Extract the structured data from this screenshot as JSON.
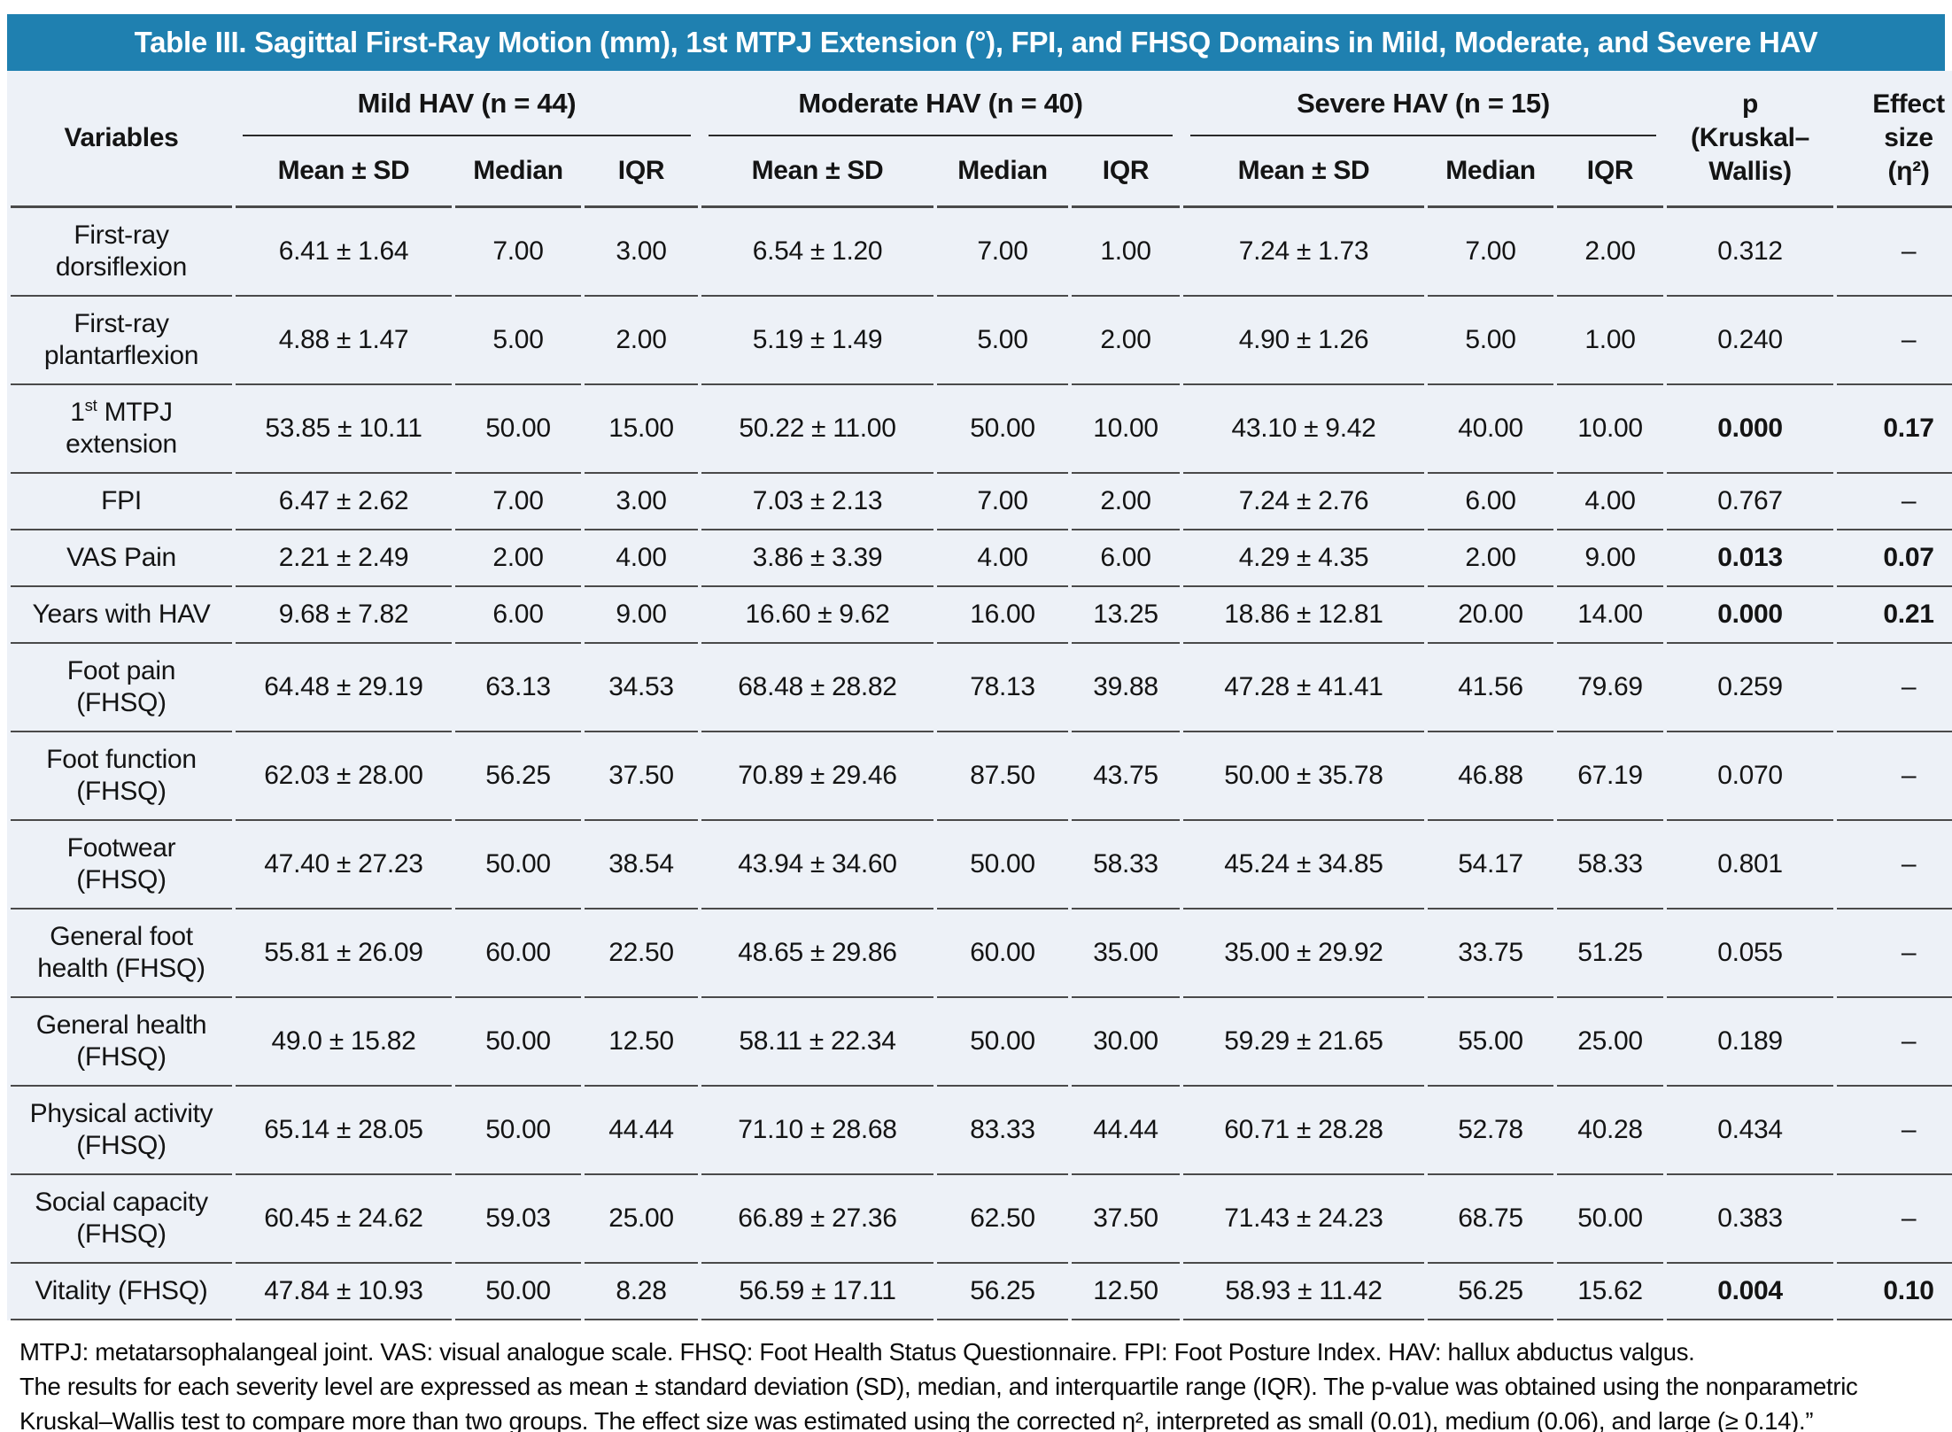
{
  "title": "Table III. Sagittal First-Ray Motion (mm), 1st MTPJ Extension (°), FPI, and FHSQ Domains in Mild, Moderate, and Severe HAV",
  "colors": {
    "header_blue": "#1f80b0",
    "table_background": "#edf1f7",
    "rule_gray": "#4a4a4a"
  },
  "header": {
    "variables_label": "Variables",
    "groups": [
      {
        "label": "Mild HAV (n = 44)"
      },
      {
        "label": "Moderate HAV (n = 40)"
      },
      {
        "label": "Severe HAV (n = 15)"
      }
    ],
    "sub_columns": [
      "Mean ± SD",
      "Median",
      "IQR"
    ],
    "p_lines": [
      "p",
      "(Kruskal–",
      "Wallis)"
    ],
    "effect_lines": [
      "Effect",
      "size",
      "(η²)"
    ]
  },
  "rows": [
    {
      "variable_parts": [
        {
          "t": "First-ray dorsiflexion"
        }
      ],
      "mild": {
        "mean_sd": "6.41 ± 1.64",
        "median": "7.00",
        "iqr": "3.00"
      },
      "moderate": {
        "mean_sd": "6.54 ± 1.20",
        "median": "7.00",
        "iqr": "1.00"
      },
      "severe": {
        "mean_sd": "7.24 ± 1.73",
        "median": "7.00",
        "iqr": "2.00"
      },
      "p": "0.312",
      "effect": "–",
      "bold": false
    },
    {
      "variable_parts": [
        {
          "t": "First-ray plantarflexion"
        }
      ],
      "mild": {
        "mean_sd": "4.88 ± 1.47",
        "median": "5.00",
        "iqr": "2.00"
      },
      "moderate": {
        "mean_sd": "5.19 ± 1.49",
        "median": "5.00",
        "iqr": "2.00"
      },
      "severe": {
        "mean_sd": "4.90 ± 1.26",
        "median": "5.00",
        "iqr": "1.00"
      },
      "p": "0.240",
      "effect": "–",
      "bold": false
    },
    {
      "variable_parts": [
        {
          "t": "1"
        },
        {
          "t": "st",
          "sup": true
        },
        {
          "t": " MTPJ extension"
        }
      ],
      "mild": {
        "mean_sd": "53.85 ± 10.11",
        "median": "50.00",
        "iqr": "15.00"
      },
      "moderate": {
        "mean_sd": "50.22 ± 11.00",
        "median": "50.00",
        "iqr": "10.00"
      },
      "severe": {
        "mean_sd": "43.10 ± 9.42",
        "median": "40.00",
        "iqr": "10.00"
      },
      "p": "0.000",
      "effect": "0.17",
      "bold": true
    },
    {
      "variable_parts": [
        {
          "t": "FPI"
        }
      ],
      "mild": {
        "mean_sd": "6.47 ± 2.62",
        "median": "7.00",
        "iqr": "3.00"
      },
      "moderate": {
        "mean_sd": "7.03 ± 2.13",
        "median": "7.00",
        "iqr": "2.00"
      },
      "severe": {
        "mean_sd": "7.24 ± 2.76",
        "median": "6.00",
        "iqr": "4.00"
      },
      "p": "0.767",
      "effect": "–",
      "bold": false
    },
    {
      "variable_parts": [
        {
          "t": "VAS Pain"
        }
      ],
      "mild": {
        "mean_sd": "2.21 ± 2.49",
        "median": "2.00",
        "iqr": "4.00"
      },
      "moderate": {
        "mean_sd": "3.86 ± 3.39",
        "median": "4.00",
        "iqr": "6.00"
      },
      "severe": {
        "mean_sd": "4.29 ± 4.35",
        "median": "2.00",
        "iqr": "9.00"
      },
      "p": "0.013",
      "effect": "0.07",
      "bold": true
    },
    {
      "variable_parts": [
        {
          "t": "Years with HAV"
        }
      ],
      "mild": {
        "mean_sd": "9.68 ± 7.82",
        "median": "6.00",
        "iqr": "9.00"
      },
      "moderate": {
        "mean_sd": "16.60 ± 9.62",
        "median": "16.00",
        "iqr": "13.25"
      },
      "severe": {
        "mean_sd": "18.86 ± 12.81",
        "median": "20.00",
        "iqr": "14.00"
      },
      "p": "0.000",
      "effect": "0.21",
      "bold": true
    },
    {
      "variable_parts": [
        {
          "t": "Foot pain (FHSQ)"
        }
      ],
      "mild": {
        "mean_sd": "64.48 ± 29.19",
        "median": "63.13",
        "iqr": "34.53"
      },
      "moderate": {
        "mean_sd": "68.48 ± 28.82",
        "median": "78.13",
        "iqr": "39.88"
      },
      "severe": {
        "mean_sd": "47.28 ± 41.41",
        "median": "41.56",
        "iqr": "79.69"
      },
      "p": "0.259",
      "effect": "–",
      "bold": false
    },
    {
      "variable_parts": [
        {
          "t": "Foot function (FHSQ)"
        }
      ],
      "mild": {
        "mean_sd": "62.03 ± 28.00",
        "median": "56.25",
        "iqr": "37.50"
      },
      "moderate": {
        "mean_sd": "70.89 ± 29.46",
        "median": "87.50",
        "iqr": "43.75"
      },
      "severe": {
        "mean_sd": "50.00 ± 35.78",
        "median": "46.88",
        "iqr": "67.19"
      },
      "p": "0.070",
      "effect": "–",
      "bold": false
    },
    {
      "variable_parts": [
        {
          "t": "Footwear (FHSQ)"
        }
      ],
      "mild": {
        "mean_sd": "47.40 ± 27.23",
        "median": "50.00",
        "iqr": "38.54"
      },
      "moderate": {
        "mean_sd": "43.94 ± 34.60",
        "median": "50.00",
        "iqr": "58.33"
      },
      "severe": {
        "mean_sd": "45.24 ± 34.85",
        "median": "54.17",
        "iqr": "58.33"
      },
      "p": "0.801",
      "effect": "–",
      "bold": false
    },
    {
      "variable_parts": [
        {
          "t": "General foot health (FHSQ)"
        }
      ],
      "mild": {
        "mean_sd": "55.81 ± 26.09",
        "median": "60.00",
        "iqr": "22.50"
      },
      "moderate": {
        "mean_sd": "48.65 ± 29.86",
        "median": "60.00",
        "iqr": "35.00"
      },
      "severe": {
        "mean_sd": "35.00 ± 29.92",
        "median": "33.75",
        "iqr": "51.25"
      },
      "p": "0.055",
      "effect": "–",
      "bold": false
    },
    {
      "variable_parts": [
        {
          "t": "General health (FHSQ)"
        }
      ],
      "mild": {
        "mean_sd": "49.0 ± 15.82",
        "median": "50.00",
        "iqr": "12.50"
      },
      "moderate": {
        "mean_sd": "58.11 ± 22.34",
        "median": "50.00",
        "iqr": "30.00"
      },
      "severe": {
        "mean_sd": "59.29 ± 21.65",
        "median": "55.00",
        "iqr": "25.00"
      },
      "p": "0.189",
      "effect": "–",
      "bold": false
    },
    {
      "variable_parts": [
        {
          "t": "Physical activity (FHSQ)"
        }
      ],
      "mild": {
        "mean_sd": "65.14 ± 28.05",
        "median": "50.00",
        "iqr": "44.44"
      },
      "moderate": {
        "mean_sd": "71.10 ± 28.68",
        "median": "83.33",
        "iqr": "44.44"
      },
      "severe": {
        "mean_sd": "60.71 ± 28.28",
        "median": "52.78",
        "iqr": "40.28"
      },
      "p": "0.434",
      "effect": "–",
      "bold": false
    },
    {
      "variable_parts": [
        {
          "t": "Social capacity (FHSQ)"
        }
      ],
      "mild": {
        "mean_sd": "60.45 ± 24.62",
        "median": "59.03",
        "iqr": "25.00"
      },
      "moderate": {
        "mean_sd": "66.89 ± 27.36",
        "median": "62.50",
        "iqr": "37.50"
      },
      "severe": {
        "mean_sd": "71.43 ± 24.23",
        "median": "68.75",
        "iqr": "50.00"
      },
      "p": "0.383",
      "effect": "–",
      "bold": false
    },
    {
      "variable_parts": [
        {
          "t": "Vitality (FHSQ)"
        }
      ],
      "mild": {
        "mean_sd": "47.84 ± 10.93",
        "median": "50.00",
        "iqr": "8.28"
      },
      "moderate": {
        "mean_sd": "56.59 ± 17.11",
        "median": "56.25",
        "iqr": "12.50"
      },
      "severe": {
        "mean_sd": "58.93 ± 11.42",
        "median": "56.25",
        "iqr": "15.62"
      },
      "p": "0.004",
      "effect": "0.10",
      "bold": true
    }
  ],
  "footnotes": {
    "line1": "MTPJ: metatarsophalangeal joint. VAS: visual analogue scale. FHSQ: Foot Health Status Questionnaire. FPI: Foot Posture Index. HAV: hallux abductus valgus.",
    "line2": "The results for each severity level are expressed as mean ± standard deviation (SD), median, and interquartile range (IQR). The p-value was obtained using the nonparametric Kruskal–Wallis test to compare more than two groups. The effect size was estimated using the corrected η², interpreted as small (0.01), medium (0.06), and large (≥ 0.14).”"
  }
}
